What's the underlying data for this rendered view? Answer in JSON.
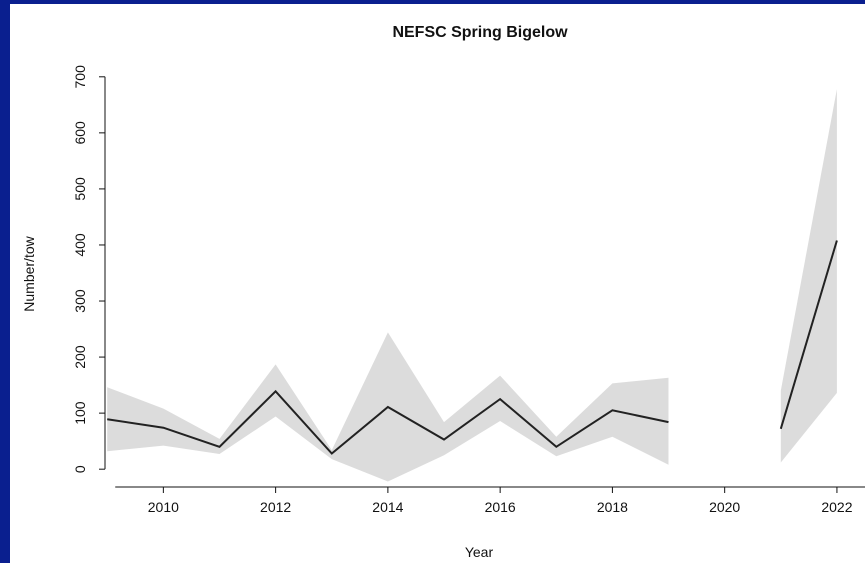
{
  "chart_data": {
    "type": "line",
    "title": "NEFSC Spring Bigelow",
    "xlabel": "Year",
    "ylabel": "Number/tow",
    "xlim": [
      2008.8,
      2022.5
    ],
    "ylim": [
      -30,
      705
    ],
    "x_ticks": [
      2010,
      2012,
      2014,
      2016,
      2018,
      2020,
      2022
    ],
    "y_ticks": [
      0,
      100,
      200,
      300,
      400,
      500,
      600,
      700
    ],
    "grid": false,
    "series": [
      {
        "segments": [
          {
            "x": [
              2009,
              2010,
              2011,
              2012,
              2013,
              2014,
              2015,
              2016,
              2017,
              2018,
              2019
            ],
            "y": [
              89,
              74,
              40,
              139,
              28,
              111,
              53,
              125,
              40,
              105,
              84
            ],
            "lower": [
              32,
              42,
              27,
              94,
              18,
              -22,
              25,
              86,
              23,
              58,
              8
            ],
            "upper": [
              146,
              108,
              54,
              187,
              34,
              244,
              84,
              167,
              58,
              153,
              163
            ]
          },
          {
            "x": [
              2021,
              2022
            ],
            "y": [
              72,
              408
            ],
            "lower": [
              12,
              136
            ],
            "upper": [
              140,
              678
            ]
          }
        ]
      }
    ],
    "colors": {
      "line": "#222222",
      "band": "#dcdcdc",
      "frame": "#0a1f8f",
      "axis": "#111111"
    }
  }
}
